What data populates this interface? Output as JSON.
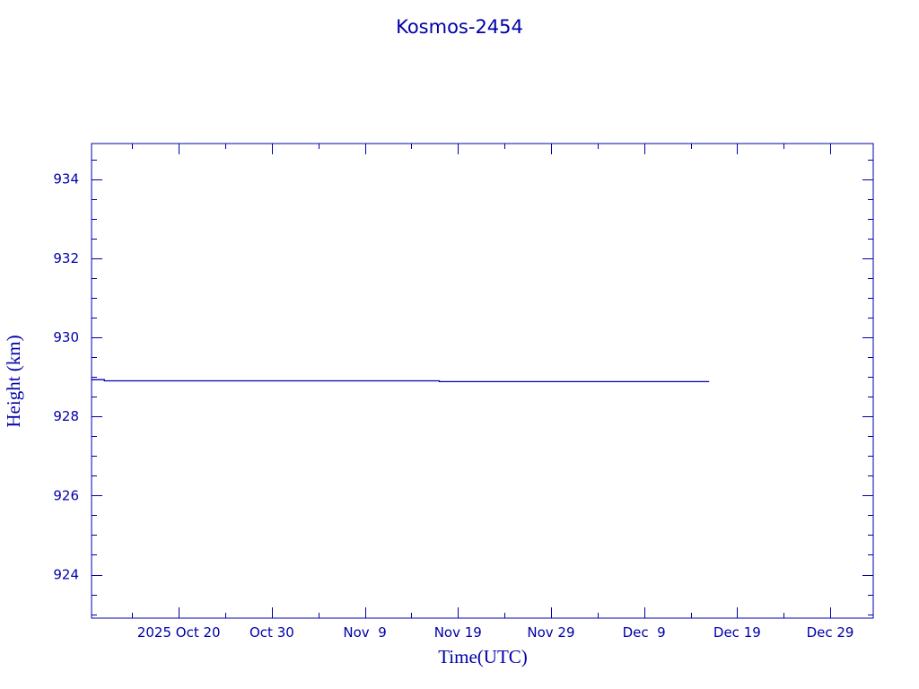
{
  "chart_data": {
    "type": "line",
    "title": "Kosmos-2454",
    "xlabel": "Time(UTC)",
    "ylabel": "Height (km)",
    "xlim": [
      "2025-10-10T15:00",
      "2026-01-02T15:00"
    ],
    "ylim": [
      922.9,
      934.9
    ],
    "x_ticks": [
      {
        "date": "2025-10-20",
        "label": "2025 Oct 20"
      },
      {
        "date": "2025-10-30",
        "label": "Oct 30"
      },
      {
        "date": "2025-11-09",
        "label": "Nov  9"
      },
      {
        "date": "2025-11-19",
        "label": "Nov 19"
      },
      {
        "date": "2025-11-29",
        "label": "Nov 29"
      },
      {
        "date": "2025-12-09",
        "label": "Dec  9"
      },
      {
        "date": "2025-12-19",
        "label": "Dec 19"
      },
      {
        "date": "2025-12-29",
        "label": "Dec 29"
      }
    ],
    "y_ticks": [
      924,
      926,
      928,
      930,
      932,
      934
    ],
    "grid": false,
    "color": "#0000a8",
    "series": [
      {
        "x": [
          "2025-10-10T15:00",
          "2025-10-12",
          "2025-10-12",
          "2025-11-17",
          "2025-11-17",
          "2025-12-16"
        ],
        "y": [
          928.93,
          928.93,
          928.9,
          928.9,
          928.88,
          928.88
        ]
      }
    ]
  }
}
